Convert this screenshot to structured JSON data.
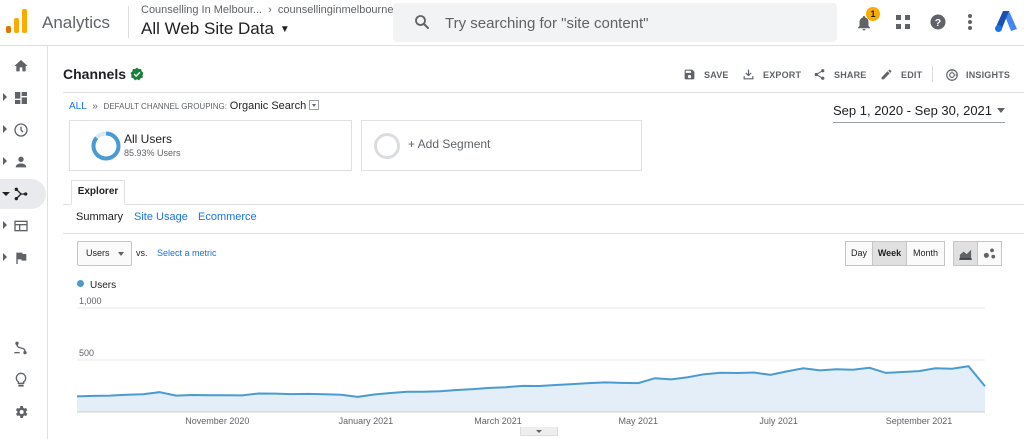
{
  "header": {
    "app_name": "Analytics",
    "account_name": "Counselling In Melbour...",
    "property_name": "counsellinginmelbourne...",
    "view_name": "All Web Site Data",
    "search_placeholder": "Try searching for \"site content\"",
    "notification_count": "1"
  },
  "report": {
    "title": "Channels",
    "actions": [
      "SAVE",
      "EXPORT",
      "SHARE",
      "EDIT",
      "INSIGHTS"
    ]
  },
  "breadcrumb": {
    "all": "ALL",
    "separator": "»",
    "group": "DEFAULT CHANNEL GROUPING:",
    "value": "Organic Search"
  },
  "date_range": "Sep 1, 2020 - Sep 30, 2021",
  "segments": {
    "primary_title": "All Users",
    "primary_sub": "85.93% Users",
    "primary_share": 0.8593,
    "add_label": "+ Add Segment"
  },
  "tabs": {
    "explorer": "Explorer"
  },
  "subtabs": [
    "Summary",
    "Site Usage",
    "Ecommerce"
  ],
  "controls": {
    "metric": "Users",
    "vs": "vs.",
    "select_metric": "Select a metric",
    "periods": [
      "Day",
      "Week",
      "Month"
    ],
    "active_period": "Week"
  },
  "colors": {
    "accent": "#1a73e8",
    "series": "#4a9bd1",
    "series_fill": "#e3eef8",
    "verified": "#188038"
  },
  "chart_data": {
    "type": "area",
    "series": [
      {
        "name": "Users",
        "values": [
          150,
          155,
          158,
          165,
          170,
          190,
          158,
          163,
          162,
          161,
          160,
          178,
          177,
          172,
          174,
          170,
          165,
          145,
          168,
          183,
          195,
          195,
          200,
          212,
          220,
          232,
          238,
          251,
          250,
          260,
          268,
          278,
          285,
          280,
          278,
          325,
          313,
          335,
          363,
          377,
          375,
          380,
          357,
          390,
          420,
          400,
          412,
          406,
          425,
          376,
          385,
          393,
          420,
          415,
          440,
          248
        ]
      }
    ],
    "x_tick_labels": [
      "November 2020",
      "January 2021",
      "March 2021",
      "May 2021",
      "July 2021",
      "September 2021"
    ],
    "x_tick_index": [
      8.5,
      17.5,
      25.5,
      34,
      42.5,
      51
    ],
    "y_tick_labels": [
      "1,000",
      "500"
    ],
    "ylim": [
      0,
      1000
    ]
  }
}
